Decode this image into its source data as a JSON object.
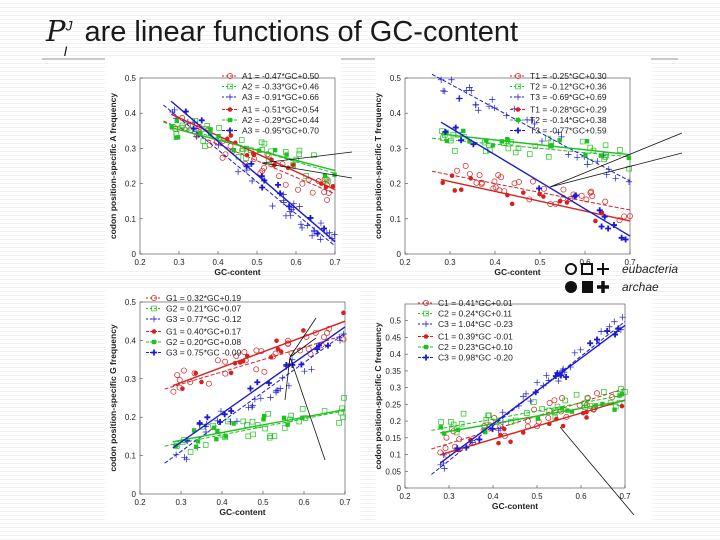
{
  "title": {
    "symbol": "P",
    "sup": "J",
    "sub": "I",
    "text": " are linear functions of GC-content"
  },
  "legend_eubacteria": "eubacteria",
  "legend_archae": "archae",
  "colors": {
    "pos1": "#d92020",
    "pos2": "#1ec21e",
    "pos3": "#1a1ad0"
  },
  "chart_data": [
    {
      "type": "scatter",
      "id": "A",
      "title": "",
      "xlabel": "GC-content",
      "ylabel": "codon position-specific A frequency",
      "xlim": [
        0.2,
        0.7
      ],
      "ylim": [
        0,
        0.5
      ],
      "xticks": [
        0.2,
        0.3,
        0.4,
        0.5,
        0.6,
        0.7
      ],
      "yticks": [
        0,
        0.1,
        0.2,
        0.3,
        0.4,
        0.5
      ],
      "series": [
        {
          "name": "A1",
          "pos": 1,
          "group": "eubacteria",
          "label": "A1 = -0.47*GC+0.50",
          "slope": -0.47,
          "intercept": 0.5
        },
        {
          "name": "A2",
          "pos": 2,
          "group": "eubacteria",
          "label": "A2 = -0.33*GC+0.46",
          "slope": -0.33,
          "intercept": 0.46
        },
        {
          "name": "A3",
          "pos": 3,
          "group": "eubacteria",
          "label": "A3 = -0.91*GC+0.66",
          "slope": -0.91,
          "intercept": 0.66
        },
        {
          "name": "A1",
          "pos": 1,
          "group": "archae",
          "label": "A1 = -0.51*GC+0.54",
          "slope": -0.51,
          "intercept": 0.54
        },
        {
          "name": "A2",
          "pos": 2,
          "group": "archae",
          "label": "A2 = -0.29*GC+0.44",
          "slope": -0.29,
          "intercept": 0.44
        },
        {
          "name": "A3",
          "pos": 3,
          "group": "archae",
          "label": "A3 = -0.95*GC+0.70",
          "slope": -0.95,
          "intercept": 0.7
        }
      ]
    },
    {
      "type": "scatter",
      "id": "T",
      "title": "",
      "xlabel": "GC-content",
      "ylabel": "codon position-specific T frequency",
      "xlim": [
        0.2,
        0.7
      ],
      "ylim": [
        0,
        0.5
      ],
      "xticks": [
        0.2,
        0.3,
        0.4,
        0.5,
        0.6,
        0.7
      ],
      "yticks": [
        0,
        0.1,
        0.2,
        0.3,
        0.4,
        0.5
      ],
      "series": [
        {
          "name": "T1",
          "pos": 1,
          "group": "eubacteria",
          "label": "T1 = -0.25*GC+0.30",
          "slope": -0.25,
          "intercept": 0.3
        },
        {
          "name": "T2",
          "pos": 2,
          "group": "eubacteria",
          "label": "T2 = -0.12*GC+0.36",
          "slope": -0.12,
          "intercept": 0.36
        },
        {
          "name": "T3",
          "pos": 3,
          "group": "eubacteria",
          "label": "T3 = -0.69*GC+0.69",
          "slope": -0.69,
          "intercept": 0.69
        },
        {
          "name": "T1",
          "pos": 1,
          "group": "archae",
          "label": "T1 = -0.28*GC+0.29",
          "slope": -0.28,
          "intercept": 0.29
        },
        {
          "name": "T2",
          "pos": 2,
          "group": "archae",
          "label": "T2 = -0.14*GC+0.38",
          "slope": -0.14,
          "intercept": 0.38
        },
        {
          "name": "T3",
          "pos": 3,
          "group": "archae",
          "label": "T3 = -0.77*GC+0.59",
          "slope": -0.77,
          "intercept": 0.59
        }
      ]
    },
    {
      "type": "scatter",
      "id": "G",
      "title": "",
      "xlabel": "GC-content",
      "ylabel": "codon position-specific G frequency",
      "xlim": [
        0.2,
        0.7
      ],
      "ylim": [
        0,
        0.5
      ],
      "xticks": [
        0.2,
        0.3,
        0.4,
        0.5,
        0.6,
        0.7
      ],
      "yticks": [
        0,
        0.1,
        0.2,
        0.3,
        0.4,
        0.5
      ],
      "series": [
        {
          "name": "G1",
          "pos": 1,
          "group": "eubacteria",
          "label": "G1 = 0.32*GC+0.19",
          "slope": 0.32,
          "intercept": 0.19
        },
        {
          "name": "G2",
          "pos": 2,
          "group": "eubacteria",
          "label": "G2 = 0.21*GC+0.07",
          "slope": 0.21,
          "intercept": 0.07
        },
        {
          "name": "G3",
          "pos": 3,
          "group": "eubacteria",
          "label": "G3 = 0.77*GC -0.12",
          "slope": 0.77,
          "intercept": -0.12
        },
        {
          "name": "G1",
          "pos": 1,
          "group": "archae",
          "label": "G1 = 0.40*GC+0.17",
          "slope": 0.4,
          "intercept": 0.17
        },
        {
          "name": "G2",
          "pos": 2,
          "group": "archae",
          "label": "G2 = 0.20*GC+0.08",
          "slope": 0.2,
          "intercept": 0.08
        },
        {
          "name": "G3",
          "pos": 3,
          "group": "archae",
          "label": "G3 = 0.75*GC -0.09",
          "slope": 0.75,
          "intercept": -0.09
        }
      ]
    },
    {
      "type": "scatter",
      "id": "C",
      "title": "",
      "xlabel": "GC-content",
      "ylabel": "codon position-specific C frequency",
      "xlim": [
        0.2,
        0.7
      ],
      "ylim": [
        0,
        0.55
      ],
      "xticks": [
        0.2,
        0.3,
        0.4,
        0.5,
        0.6,
        0.7
      ],
      "yticks": [
        0,
        0.05,
        0.1,
        0.15,
        0.2,
        0.25,
        0.3,
        0.35,
        0.4,
        0.45,
        0.5
      ],
      "series": [
        {
          "name": "C1",
          "pos": 1,
          "group": "eubacteria",
          "label": "C1 = 0.41*GC+0.01",
          "slope": 0.41,
          "intercept": 0.01
        },
        {
          "name": "C2",
          "pos": 2,
          "group": "eubacteria",
          "label": "C2 = 0.24*GC+0.11",
          "slope": 0.24,
          "intercept": 0.11
        },
        {
          "name": "C3",
          "pos": 3,
          "group": "eubacteria",
          "label": "C3 = 1.04*GC -0.23",
          "slope": 1.04,
          "intercept": -0.23
        },
        {
          "name": "C1",
          "pos": 1,
          "group": "archae",
          "label": "C1 = 0.39*GC -0.01",
          "slope": 0.39,
          "intercept": -0.01
        },
        {
          "name": "C2",
          "pos": 2,
          "group": "archae",
          "label": "C2 = 0.23*GC+0.10",
          "slope": 0.23,
          "intercept": 0.1
        },
        {
          "name": "C3",
          "pos": 3,
          "group": "archae",
          "label": "C3 = 0.98*GC -0.20",
          "slope": 0.98,
          "intercept": -0.2
        }
      ]
    }
  ]
}
